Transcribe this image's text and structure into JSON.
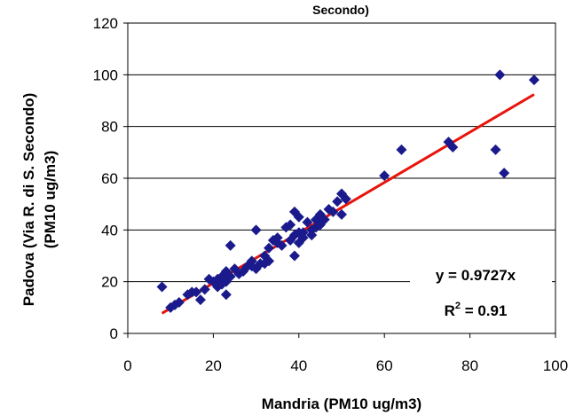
{
  "chart_data": {
    "type": "scatter",
    "title": "Secondo)",
    "xlabel": "Mandria (PM10 ug/m3)",
    "ylabel_line1": "Padova (Via R. di S. Secondo)",
    "ylabel_line2": "(PM10 ug/m3)",
    "xlim": [
      0,
      100
    ],
    "ylim": [
      0,
      120
    ],
    "xticks": [
      0,
      20,
      40,
      60,
      80,
      100
    ],
    "yticks": [
      0,
      20,
      40,
      60,
      80,
      100,
      120
    ],
    "xtick_labels": [
      "0",
      "20",
      "40",
      "60",
      "80",
      "100"
    ],
    "ytick_labels": [
      "0",
      "20",
      "40",
      "60",
      "80",
      "100",
      "120"
    ],
    "grid": "horizontal",
    "marker": "diamond",
    "marker_color": "#1a1a8c",
    "trendline_color": "#e8140c",
    "trendline": {
      "slope": 0.9727,
      "intercept": 0,
      "x_range": [
        8,
        95
      ]
    },
    "equation_label": "y = 0.9727x",
    "r2_label": "R",
    "r2_sup": "2",
    "r2_value": " = 0.91",
    "points": [
      [
        8,
        18
      ],
      [
        10,
        10
      ],
      [
        11,
        11
      ],
      [
        12,
        12
      ],
      [
        14,
        15
      ],
      [
        15,
        16
      ],
      [
        16,
        16
      ],
      [
        17,
        13
      ],
      [
        18,
        17
      ],
      [
        19,
        21
      ],
      [
        20,
        20
      ],
      [
        21,
        18
      ],
      [
        21,
        21
      ],
      [
        22,
        22
      ],
      [
        22,
        19
      ],
      [
        23,
        15
      ],
      [
        23,
        20
      ],
      [
        23,
        24
      ],
      [
        24,
        34
      ],
      [
        24,
        22
      ],
      [
        25,
        25
      ],
      [
        26,
        23
      ],
      [
        27,
        24
      ],
      [
        28,
        26
      ],
      [
        29,
        28
      ],
      [
        29,
        26
      ],
      [
        30,
        40
      ],
      [
        30,
        25
      ],
      [
        31,
        27
      ],
      [
        32,
        27
      ],
      [
        32,
        30
      ],
      [
        33,
        33
      ],
      [
        33,
        28
      ],
      [
        34,
        36
      ],
      [
        35,
        35
      ],
      [
        35,
        37
      ],
      [
        36,
        34
      ],
      [
        37,
        41
      ],
      [
        38,
        42
      ],
      [
        38,
        36
      ],
      [
        39,
        47
      ],
      [
        39,
        30
      ],
      [
        39,
        38
      ],
      [
        40,
        45
      ],
      [
        40,
        39
      ],
      [
        40,
        35
      ],
      [
        41,
        37
      ],
      [
        41,
        39
      ],
      [
        42,
        43
      ],
      [
        43,
        40
      ],
      [
        43,
        38
      ],
      [
        44,
        41
      ],
      [
        44,
        44
      ],
      [
        45,
        46
      ],
      [
        45,
        42
      ],
      [
        46,
        44
      ],
      [
        47,
        48
      ],
      [
        48,
        47
      ],
      [
        49,
        51
      ],
      [
        50,
        46
      ],
      [
        50,
        54
      ],
      [
        51,
        52
      ],
      [
        60,
        61
      ],
      [
        64,
        71
      ],
      [
        75,
        74
      ],
      [
        76,
        72
      ],
      [
        86,
        71
      ],
      [
        87,
        100
      ],
      [
        88,
        62
      ],
      [
        95,
        98
      ]
    ]
  }
}
